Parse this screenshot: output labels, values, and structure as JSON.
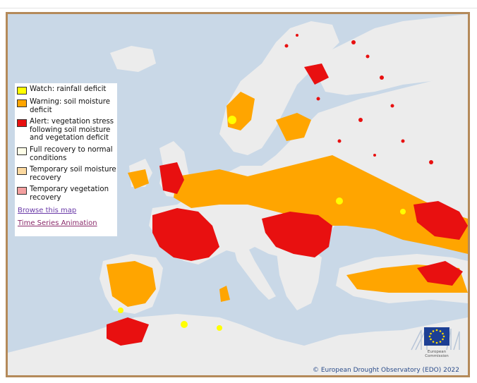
{
  "legend": {
    "items": [
      {
        "label": "Watch: rainfall deficit",
        "color": "#ffff00"
      },
      {
        "label": "Warning: soil moisture deficit",
        "color": "#ffa500"
      },
      {
        "label": "Alert: vegetation stress following soil moisture and vegetation deficit",
        "color": "#e81010"
      },
      {
        "label": "Full recovery to normal conditions",
        "color": "#fefee8"
      },
      {
        "label": "Temporary soil moisture recovery",
        "color": "#fcd9a0"
      },
      {
        "label": "Temporary vegetation recovery",
        "color": "#f4a0a0"
      }
    ],
    "browse_link": "Browse this map",
    "animation_link": "Time Series Animation"
  },
  "logo": {
    "text": "European Commission",
    "icon": "eu-flag-icon"
  },
  "copyright": "© European Drought Observatory (EDO) 2022",
  "colors": {
    "frame": "#b48a5a",
    "sea": "#c9d8e7",
    "land": "#ececec",
    "warning": "#ffa500",
    "alert": "#e81010",
    "watch": "#ffff00"
  }
}
